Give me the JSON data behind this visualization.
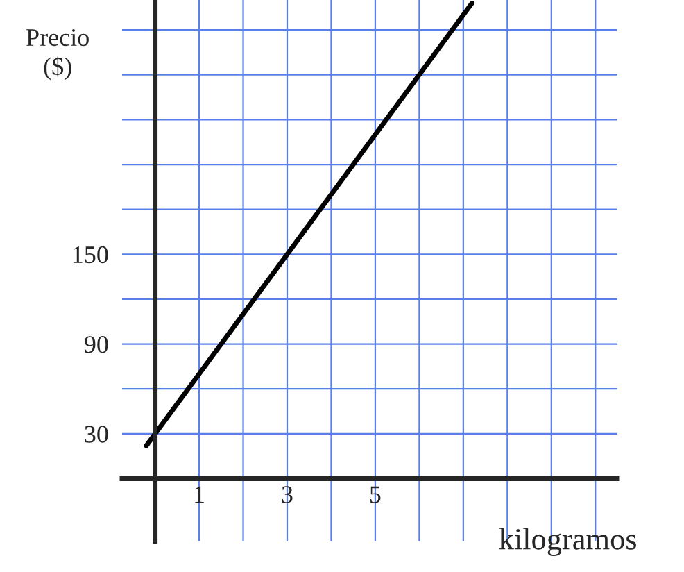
{
  "chart_data": {
    "type": "line",
    "xlabel": "kilogramos",
    "ylabel": "Precio\n($)",
    "x": [
      -0.2,
      7.2
    ],
    "series": [
      {
        "color": "#000000",
        "values": [
          22,
          318
        ]
      }
    ],
    "xlim": [
      -0.75,
      10.5
    ],
    "ylim": [
      -42,
      320
    ],
    "xticks": [
      {
        "value": 0,
        "label": null
      },
      1,
      {
        "value": 2,
        "label": null
      },
      3,
      {
        "value": 4,
        "label": null
      },
      5,
      {
        "value": 6,
        "label": null
      },
      {
        "value": 7,
        "label": null
      },
      {
        "value": 8,
        "label": null
      },
      {
        "value": 9,
        "label": null
      },
      {
        "value": 10,
        "label": null
      }
    ],
    "yticks": [
      {
        "value": 0,
        "label": null
      },
      30,
      {
        "value": 60,
        "label": null
      },
      90,
      {
        "value": 120,
        "label": null
      },
      150,
      {
        "value": 180,
        "label": null
      },
      {
        "value": 210,
        "label": null
      },
      {
        "value": 240,
        "label": null
      },
      {
        "value": 270,
        "label": null
      },
      {
        "value": 300,
        "label": null
      }
    ],
    "grid": true,
    "legend": false
  }
}
